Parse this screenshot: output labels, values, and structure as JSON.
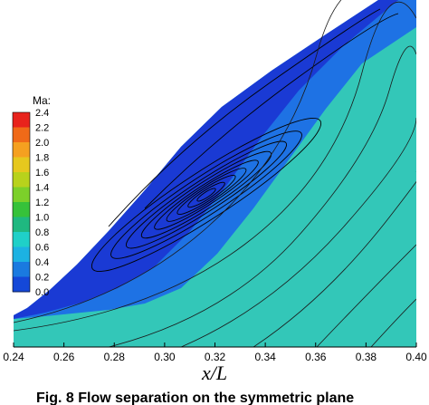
{
  "chart_data": {
    "type": "contour",
    "xlabel": "x/L",
    "x_ticks": [
      "0.24",
      "0.26",
      "0.28",
      "0.30",
      "0.32",
      "0.34",
      "0.36",
      "0.38",
      "0.40"
    ],
    "xlim": [
      0.24,
      0.4
    ],
    "colorbar": {
      "title": "Ma:",
      "levels": [
        "2.4",
        "2.2",
        "2.0",
        "1.8",
        "1.6",
        "1.4",
        "1.2",
        "1.0",
        "0.8",
        "0.6",
        "0.4",
        "0.2",
        "0.0"
      ],
      "range": [
        0.0,
        2.4
      ],
      "colors": [
        "#e8231c",
        "#f06a18",
        "#f5a020",
        "#e6c81e",
        "#b8d21c",
        "#7cd02a",
        "#36c23a",
        "#1fb880",
        "#1fd0c8",
        "#1cb2e2",
        "#1a7ae0",
        "#1448d8",
        "#1020c8"
      ]
    },
    "field_colors": {
      "freestream": "#33c7b8",
      "near_wall": "#1e72e4",
      "wall": "#1a3ad4"
    },
    "caption": "Fig. 8 Flow separation on the symmetric plane"
  }
}
